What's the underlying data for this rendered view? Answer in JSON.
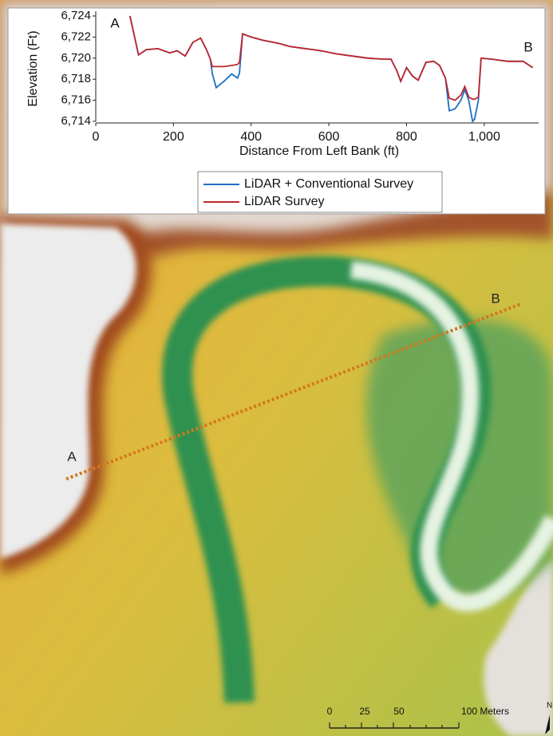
{
  "chart_data": {
    "type": "line",
    "x_label": "Distance From Left Bank (ft)",
    "y_label": "Elevation (Ft)",
    "annotations": [
      "A",
      "B"
    ],
    "x": [
      88,
      100,
      110,
      130,
      160,
      190,
      210,
      230,
      250,
      270,
      285,
      295,
      300,
      310,
      330,
      350,
      365,
      370,
      378,
      400,
      430,
      470,
      500,
      540,
      580,
      620,
      660,
      700,
      740,
      760,
      775,
      785,
      800,
      815,
      830,
      850,
      870,
      885,
      900,
      910,
      925,
      940,
      950,
      960,
      970,
      975,
      985,
      992,
      1020,
      1060,
      1100,
      1125
    ],
    "series": [
      {
        "name": "LiDAR + Conventional Survey",
        "color": "#1f6fc4",
        "values": [
          6724,
          6722,
          6720.3,
          6720.8,
          6720.9,
          6720.5,
          6720.7,
          6720.2,
          6721.5,
          6721.9,
          6720.8,
          6719.9,
          6718.5,
          6717.2,
          6717.8,
          6718.5,
          6718.1,
          6718.6,
          6722.3,
          6722.0,
          6721.7,
          6721.4,
          6721.1,
          6720.9,
          6720.7,
          6720.4,
          6720.2,
          6720.0,
          6719.9,
          6719.9,
          6718.8,
          6717.8,
          6719.1,
          6718.3,
          6717.9,
          6719.6,
          6719.7,
          6719.3,
          6718.1,
          6715.0,
          6715.2,
          6716.0,
          6717.0,
          6716.0,
          6714.0,
          6714.2,
          6716.0,
          6720.0,
          6719.9,
          6719.7,
          6719.7,
          6719.1
        ]
      },
      {
        "name": "LiDAR Survey",
        "color": "#c0262d",
        "values": [
          6724,
          6722,
          6720.3,
          6720.8,
          6720.9,
          6720.5,
          6720.7,
          6720.2,
          6721.5,
          6721.9,
          6720.8,
          6719.9,
          6719.2,
          6719.2,
          6719.2,
          6719.3,
          6719.4,
          6719.6,
          6722.3,
          6722.0,
          6721.7,
          6721.4,
          6721.1,
          6720.9,
          6720.7,
          6720.4,
          6720.2,
          6720.0,
          6719.9,
          6719.9,
          6718.8,
          6717.8,
          6719.1,
          6718.3,
          6717.9,
          6719.6,
          6719.7,
          6719.3,
          6718.1,
          6716.2,
          6716.0,
          6716.5,
          6717.3,
          6716.3,
          6716.1,
          6716.1,
          6716.3,
          6720.0,
          6719.9,
          6719.7,
          6719.7,
          6719.1
        ]
      }
    ],
    "xlim": [
      0,
      1140
    ],
    "xticks": [
      0,
      200,
      400,
      600,
      800,
      {
        "value": 1000,
        "label": "1,000"
      }
    ],
    "ylim": [
      6714,
      6724
    ],
    "yticks": [
      {
        "value": 6714,
        "label": "6,714"
      },
      {
        "value": 6716,
        "label": "6,716"
      },
      {
        "value": 6718,
        "label": "6,718"
      },
      {
        "value": 6720,
        "label": "6,720"
      },
      {
        "value": 6722,
        "label": "6,722"
      },
      {
        "value": 6724,
        "label": "6,724"
      }
    ]
  },
  "map": {
    "labels": [
      "A",
      "B"
    ],
    "scale_bar": [
      "0",
      "25",
      "50",
      "100 Meters"
    ],
    "north": "N"
  }
}
